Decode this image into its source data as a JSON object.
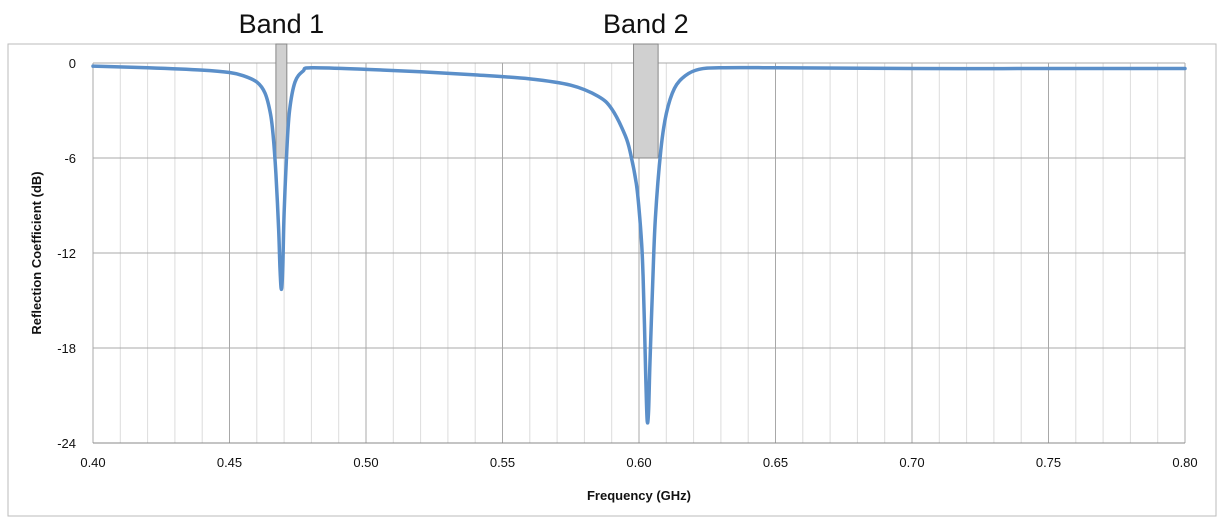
{
  "chart_data": {
    "type": "line",
    "xlabel": "Frequency (GHz)",
    "ylabel": "Reflection Coefficient (dB)",
    "xlim": [
      0.4,
      0.8
    ],
    "ylim": [
      -24,
      0
    ],
    "x_ticks": [
      "0.40",
      "0.45",
      "0.50",
      "0.55",
      "0.60",
      "0.65",
      "0.70",
      "0.75",
      "0.80"
    ],
    "y_ticks": [
      "0",
      "-6",
      "-12",
      "-18",
      "-24"
    ],
    "grid": true,
    "series": [
      {
        "x": [
          0.4,
          0.42,
          0.44,
          0.45,
          0.455,
          0.46,
          0.463,
          0.465,
          0.466,
          0.467,
          0.468,
          0.4685,
          0.469,
          0.4695,
          0.47,
          0.471,
          0.472,
          0.474,
          0.477,
          0.48,
          0.5,
          0.52,
          0.54,
          0.56,
          0.575,
          0.585,
          0.59,
          0.595,
          0.597,
          0.599,
          0.6,
          0.601,
          0.6015,
          0.602,
          0.6025,
          0.603,
          0.6035,
          0.604,
          0.605,
          0.606,
          0.608,
          0.61,
          0.613,
          0.617,
          0.622,
          0.63,
          0.65,
          0.7,
          0.75,
          0.8
        ],
        "y": [
          -0.2,
          -0.3,
          -0.45,
          -0.6,
          -0.8,
          -1.2,
          -1.9,
          -3.2,
          -4.6,
          -7.0,
          -10.5,
          -13.0,
          -14.3,
          -13.0,
          -9.5,
          -5.5,
          -3.0,
          -1.2,
          -0.5,
          -0.3,
          -0.4,
          -0.55,
          -0.75,
          -1.0,
          -1.4,
          -2.1,
          -2.9,
          -4.6,
          -5.8,
          -7.6,
          -9.2,
          -11.5,
          -13.5,
          -16.5,
          -20.0,
          -22.6,
          -22.0,
          -19.0,
          -14.0,
          -9.8,
          -5.5,
          -3.2,
          -1.6,
          -0.8,
          -0.4,
          -0.3,
          -0.3,
          -0.35,
          -0.35,
          -0.35
        ],
        "color": "#5b8fc9"
      }
    ],
    "bands": [
      {
        "label": "Band 1",
        "x_start": 0.467,
        "x_end": 0.471,
        "y_top": 1.2,
        "y_bottom": -6
      },
      {
        "label": "Band 2",
        "x_start": 0.598,
        "x_end": 0.607,
        "y_top": 1.2,
        "y_bottom": -6
      }
    ],
    "band_fill": "#d0d0d0",
    "band_stroke": "#888888"
  }
}
